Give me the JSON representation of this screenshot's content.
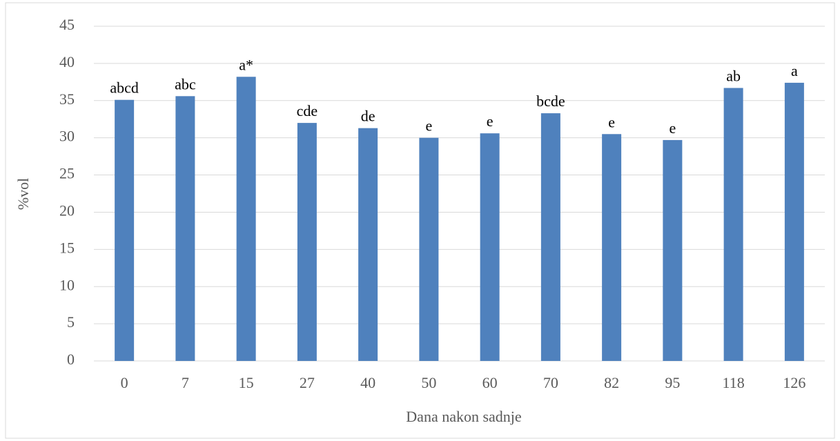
{
  "chart_data": {
    "type": "bar",
    "categories": [
      "0",
      "7",
      "15",
      "27",
      "40",
      "50",
      "60",
      "70",
      "82",
      "95",
      "118",
      "126"
    ],
    "values": [
      35.1,
      35.6,
      38.2,
      32.0,
      31.3,
      30.0,
      30.6,
      33.3,
      30.5,
      29.7,
      36.7,
      37.4
    ],
    "annotations": [
      "abcd",
      "abc",
      "a*",
      "cde",
      "de",
      "e",
      "e",
      "bcde",
      "e",
      "e",
      "ab",
      "a"
    ],
    "color": "#4f81bd",
    "xlabel": "Dana nakon sadnje",
    "ylabel": "%vol",
    "ylim": [
      0,
      45
    ],
    "yticks": [
      0,
      5,
      10,
      15,
      20,
      25,
      30,
      35,
      40,
      45
    ],
    "grid": true
  }
}
